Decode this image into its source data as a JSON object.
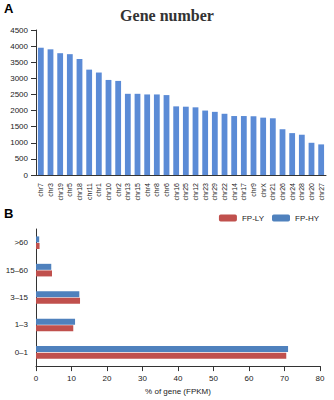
{
  "chart_data": [
    {
      "type": "bar",
      "title": "Gene number",
      "annotations": [
        "A"
      ],
      "categories": [
        "chr7",
        "chr3",
        "chr19",
        "chr5",
        "chr18",
        "chr11",
        "chr1",
        "chr10",
        "chr2",
        "chr13",
        "chr15",
        "chr4",
        "chr8",
        "chr6",
        "chr16",
        "chr25",
        "chr12",
        "chr23",
        "chr29",
        "chr22",
        "chr14",
        "chr17",
        "chr9",
        "chrX",
        "chr21",
        "chr26",
        "chr24",
        "chr28",
        "chr20",
        "chr27"
      ],
      "values": [
        3950,
        3900,
        3780,
        3750,
        3600,
        3270,
        3180,
        2950,
        2920,
        2520,
        2520,
        2500,
        2500,
        2480,
        2130,
        2120,
        2100,
        2000,
        1960,
        1900,
        1830,
        1830,
        1820,
        1780,
        1760,
        1420,
        1300,
        1250,
        1000,
        950
      ],
      "color": "#5b8bd6",
      "ylim": [
        0,
        4500
      ],
      "yticks": [
        0,
        500,
        1000,
        1500,
        2000,
        2500,
        3000,
        3500,
        4000,
        4500
      ],
      "grid": false
    },
    {
      "type": "bar",
      "orientation": "horizontal",
      "annotations": [
        "B"
      ],
      "x_label": "% of gene (FPKM)",
      "categories": [
        "0–1",
        "1–3",
        "3–15",
        "15–60",
        ">60"
      ],
      "series": [
        {
          "name": "FP-LY",
          "color": "#c0504d",
          "values": [
            70.5,
            10.5,
            12.4,
            4.5,
            1.0
          ]
        },
        {
          "name": "FP-HY",
          "color": "#4f81bd",
          "values": [
            71.0,
            11.0,
            12.2,
            4.3,
            0.9
          ]
        }
      ],
      "xlim": [
        0,
        80
      ],
      "xticks": [
        0,
        10,
        20,
        30,
        40,
        50,
        60,
        70,
        80
      ],
      "grid": false,
      "legend": "top-right"
    }
  ]
}
